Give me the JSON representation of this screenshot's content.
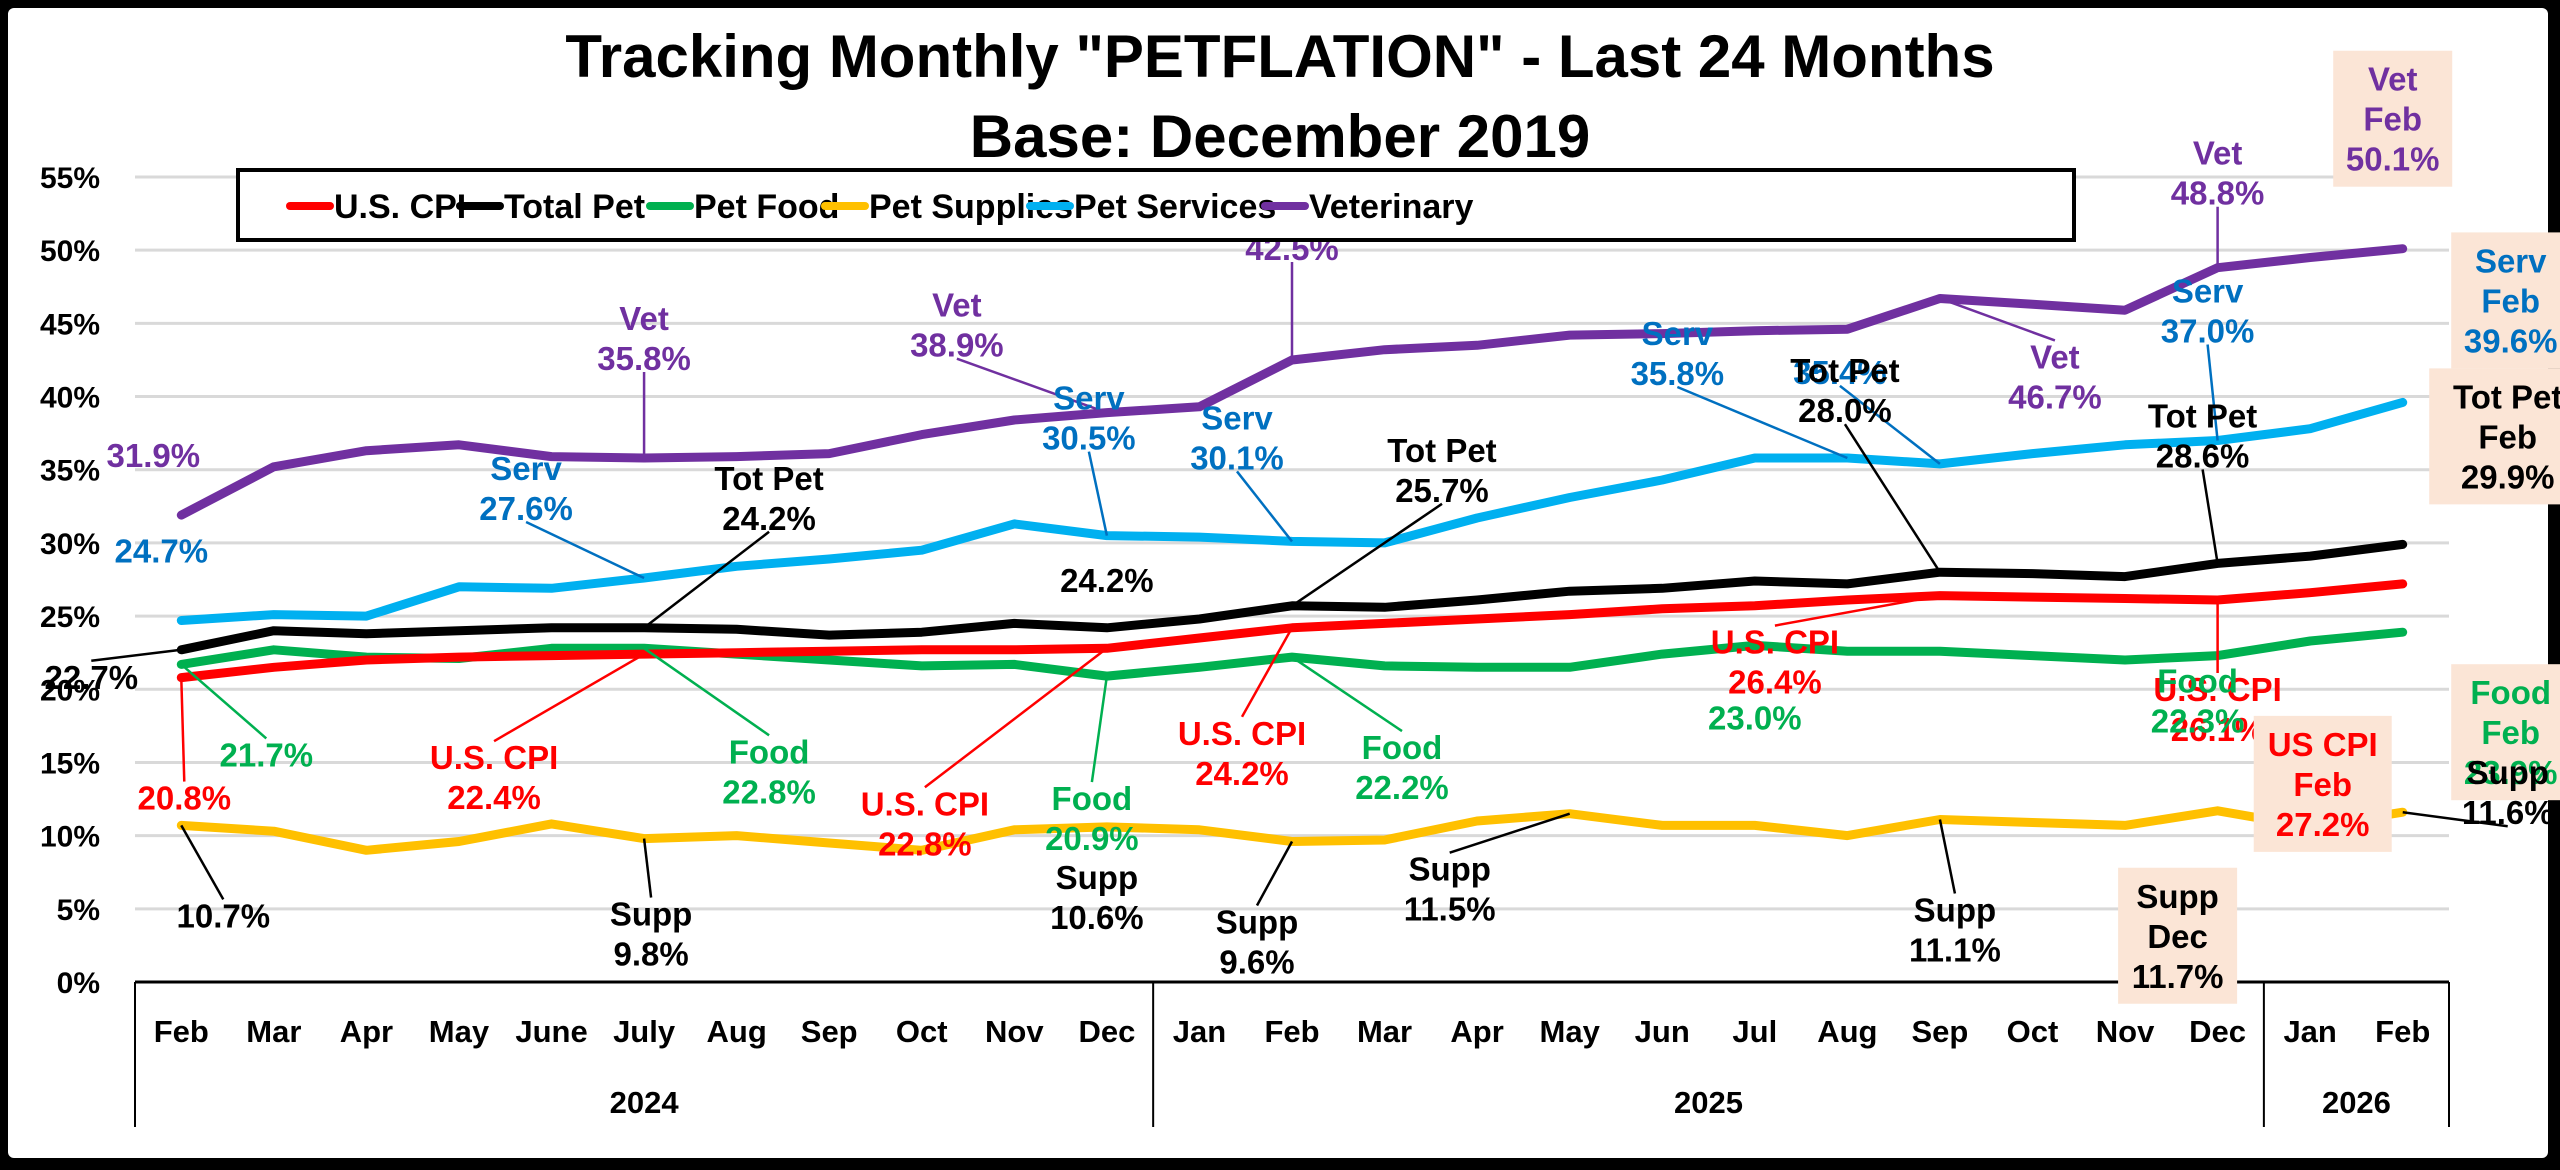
{
  "chart_data": {
    "type": "line",
    "title": "Tracking Monthly \"PETFLATION\" - Last 24 Months",
    "subtitle": "Base: December 2019",
    "xlabel": "",
    "ylabel": "",
    "ylim": [
      0,
      55
    ],
    "yticks": [
      "0%",
      "5%",
      "10%",
      "15%",
      "20%",
      "25%",
      "30%",
      "35%",
      "40%",
      "45%",
      "50%",
      "55%"
    ],
    "grid": true,
    "legend_position": "top-center",
    "categories": [
      "Feb",
      "Mar",
      "Apr",
      "May",
      "June",
      "July",
      "Aug",
      "Sep",
      "Oct",
      "Nov",
      "Dec",
      "Jan",
      "Feb",
      "Mar",
      "Apr",
      "May",
      "Jun",
      "Jul",
      "Aug",
      "Sep",
      "Oct",
      "Nov",
      "Dec",
      "Jan",
      "Feb"
    ],
    "year_groups": [
      {
        "label": "2024",
        "count": 11
      },
      {
        "label": "2025",
        "count": 12
      },
      {
        "label": "2026",
        "count": 2
      }
    ],
    "series": [
      {
        "name": "U.S. CPI",
        "color": "#FF0000",
        "values": [
          20.8,
          21.5,
          22.0,
          22.2,
          22.3,
          22.4,
          22.5,
          22.6,
          22.7,
          22.7,
          22.8,
          23.5,
          24.2,
          24.5,
          24.8,
          25.1,
          25.5,
          25.7,
          26.1,
          26.4,
          26.3,
          26.2,
          26.1,
          26.6,
          27.2
        ]
      },
      {
        "name": "Total Pet",
        "color": "#000000",
        "values": [
          22.7,
          24.0,
          23.8,
          24.0,
          24.2,
          24.2,
          24.1,
          23.7,
          23.9,
          24.5,
          24.2,
          24.8,
          25.7,
          25.6,
          26.1,
          26.7,
          26.9,
          27.4,
          27.2,
          28.0,
          27.9,
          27.7,
          28.6,
          29.1,
          29.9
        ]
      },
      {
        "name": "Pet Food",
        "color": "#00B050",
        "values": [
          21.7,
          22.7,
          22.2,
          22.1,
          22.8,
          22.8,
          22.4,
          22.0,
          21.6,
          21.7,
          20.9,
          21.5,
          22.2,
          21.6,
          21.5,
          21.5,
          22.4,
          23.0,
          22.6,
          22.6,
          22.3,
          22.0,
          22.3,
          23.3,
          23.9
        ]
      },
      {
        "name": "Pet Supplies",
        "color": "#FFC000",
        "values": [
          10.7,
          10.3,
          9.0,
          9.6,
          10.8,
          9.8,
          10.0,
          9.5,
          9.0,
          10.4,
          10.6,
          10.4,
          9.6,
          9.7,
          11.0,
          11.5,
          10.7,
          10.7,
          10.0,
          11.1,
          10.9,
          10.7,
          11.7,
          10.6,
          11.6
        ]
      },
      {
        "name": "Pet Services",
        "color": "#00B0F0",
        "values": [
          24.7,
          25.1,
          25.0,
          27.0,
          26.9,
          27.6,
          28.4,
          28.9,
          29.5,
          31.3,
          30.5,
          30.4,
          30.1,
          30.0,
          31.7,
          33.1,
          34.3,
          35.8,
          35.8,
          35.4,
          36.1,
          36.7,
          37.0,
          37.8,
          39.6
        ]
      },
      {
        "name": "Veterinary",
        "color": "#7030A0",
        "values": [
          31.9,
          35.2,
          36.3,
          36.7,
          35.9,
          35.8,
          35.9,
          36.1,
          37.4,
          38.4,
          38.9,
          39.3,
          42.5,
          43.2,
          43.5,
          44.2,
          44.3,
          44.5,
          44.6,
          46.7,
          46.3,
          45.9,
          48.8,
          49.5,
          50.1
        ]
      }
    ],
    "annotations": [
      {
        "series": 5,
        "index": 0,
        "lines": [
          "31.9%"
        ],
        "color": "#7030A0",
        "box": false
      },
      {
        "series": 5,
        "index": 5,
        "lines": [
          "Vet",
          "35.8%"
        ],
        "color": "#7030A0",
        "box": false
      },
      {
        "series": 5,
        "index": 10,
        "lines": [
          "Vet",
          "38.9%"
        ],
        "color": "#7030A0",
        "box": false
      },
      {
        "series": 5,
        "index": 12,
        "lines": [
          "Vet",
          "42.5%"
        ],
        "color": "#7030A0",
        "box": false
      },
      {
        "series": 5,
        "index": 19,
        "lines": [
          "Vet",
          "46.7%"
        ],
        "color": "#7030A0",
        "box": false
      },
      {
        "series": 5,
        "index": 22,
        "lines": [
          "Vet",
          "48.8%"
        ],
        "color": "#7030A0",
        "box": false
      },
      {
        "series": 5,
        "index": 24,
        "lines": [
          "Vet",
          "Feb",
          "50.1%"
        ],
        "color": "#7030A0",
        "box": true
      },
      {
        "series": 4,
        "index": 0,
        "lines": [
          "24.7%"
        ],
        "color": "#0070C0",
        "box": false
      },
      {
        "series": 4,
        "index": 5,
        "lines": [
          "Serv",
          "27.6%"
        ],
        "color": "#0070C0",
        "box": false
      },
      {
        "series": 4,
        "index": 10,
        "lines": [
          "Serv",
          "30.5%"
        ],
        "color": "#0070C0",
        "box": false
      },
      {
        "series": 4,
        "index": 12,
        "lines": [
          "Serv",
          "30.1%"
        ],
        "color": "#0070C0",
        "box": false
      },
      {
        "series": 4,
        "index": 18,
        "lines": [
          "Serv",
          "35.8%"
        ],
        "color": "#0070C0",
        "box": false
      },
      {
        "series": 4,
        "index": 19,
        "lines": [
          "35.4%"
        ],
        "color": "#0070C0",
        "box": false
      },
      {
        "series": 4,
        "index": 22,
        "lines": [
          "Serv",
          "37.0%"
        ],
        "color": "#0070C0",
        "box": false
      },
      {
        "series": 4,
        "index": 24,
        "lines": [
          "Serv",
          "Feb",
          "39.6%"
        ],
        "color": "#0070C0",
        "box": true
      },
      {
        "series": 1,
        "index": 0,
        "lines": [
          "22.7%"
        ],
        "color": "#000000",
        "box": false
      },
      {
        "series": 1,
        "index": 5,
        "lines": [
          "Tot Pet",
          "24.2%"
        ],
        "color": "#000000",
        "box": false
      },
      {
        "series": 1,
        "index": 10,
        "lines": [
          "24.2%"
        ],
        "color": "#000000",
        "box": false
      },
      {
        "series": 1,
        "index": 12,
        "lines": [
          "Tot Pet",
          "25.7%"
        ],
        "color": "#000000",
        "box": false
      },
      {
        "series": 1,
        "index": 19,
        "lines": [
          "Tot Pet",
          "28.0%"
        ],
        "color": "#000000",
        "box": false
      },
      {
        "series": 1,
        "index": 22,
        "lines": [
          "Tot Pet",
          "28.6%"
        ],
        "color": "#000000",
        "box": false
      },
      {
        "series": 1,
        "index": 24,
        "lines": [
          "Tot Pet",
          "Feb",
          "29.9%"
        ],
        "color": "#000000",
        "box": true
      },
      {
        "series": 0,
        "index": 0,
        "lines": [
          "20.8%"
        ],
        "color": "#FF0000",
        "box": false
      },
      {
        "series": 0,
        "index": 5,
        "lines": [
          "U.S. CPI",
          "22.4%"
        ],
        "color": "#FF0000",
        "box": false
      },
      {
        "series": 0,
        "index": 10,
        "lines": [
          "U.S. CPI",
          "22.8%"
        ],
        "color": "#FF0000",
        "box": false
      },
      {
        "series": 0,
        "index": 12,
        "lines": [
          "U.S. CPI",
          "24.2%"
        ],
        "color": "#FF0000",
        "box": false
      },
      {
        "series": 0,
        "index": 19,
        "lines": [
          "U.S. CPI",
          "26.4%"
        ],
        "color": "#FF0000",
        "box": false
      },
      {
        "series": 0,
        "index": 22,
        "lines": [
          "U.S. CPI",
          "26.1%"
        ],
        "color": "#FF0000",
        "box": false
      },
      {
        "series": 0,
        "index": 24,
        "lines": [
          "US CPI",
          "Feb",
          "27.2%"
        ],
        "color": "#FF0000",
        "box": true
      },
      {
        "series": 2,
        "index": 0,
        "lines": [
          "21.7%"
        ],
        "color": "#00B050",
        "box": false
      },
      {
        "series": 2,
        "index": 5,
        "lines": [
          "Food",
          "22.8%"
        ],
        "color": "#00B050",
        "box": false
      },
      {
        "series": 2,
        "index": 10,
        "lines": [
          "Food",
          "20.9%"
        ],
        "color": "#00B050",
        "box": false
      },
      {
        "series": 2,
        "index": 12,
        "lines": [
          "Food",
          "22.2%"
        ],
        "color": "#00B050",
        "box": false
      },
      {
        "series": 2,
        "index": 17,
        "lines": [
          "23.0%"
        ],
        "color": "#00B050",
        "box": false
      },
      {
        "series": 2,
        "index": 22,
        "lines": [
          "Food",
          "22.3%"
        ],
        "color": "#00B050",
        "box": false
      },
      {
        "series": 2,
        "index": 24,
        "lines": [
          "Food",
          "Feb",
          "23.9%"
        ],
        "color": "#00B050",
        "box": true
      },
      {
        "series": 3,
        "index": 0,
        "lines": [
          "10.7%"
        ],
        "color": "#000000",
        "box": false
      },
      {
        "series": 3,
        "index": 5,
        "lines": [
          "Supp",
          "9.8%"
        ],
        "color": "#000000",
        "box": false
      },
      {
        "series": 3,
        "index": 10,
        "lines": [
          "Supp",
          "10.6%"
        ],
        "color": "#000000",
        "box": false
      },
      {
        "series": 3,
        "index": 12,
        "lines": [
          "Supp",
          "9.6%"
        ],
        "color": "#000000",
        "box": false
      },
      {
        "series": 3,
        "index": 15,
        "lines": [
          "Supp",
          "11.5%"
        ],
        "color": "#000000",
        "box": false
      },
      {
        "series": 3,
        "index": 19,
        "lines": [
          "Supp",
          "11.1%"
        ],
        "color": "#000000",
        "box": false
      },
      {
        "series": 3,
        "index": 22,
        "lines": [
          "Supp",
          "Dec",
          "11.7%"
        ],
        "color": "#000000",
        "box": true
      },
      {
        "series": 3,
        "index": 24,
        "lines": [
          "Supp",
          "11.6%"
        ],
        "color": "#000000",
        "box": false
      }
    ],
    "highlight_box_color": "#FBE5D6",
    "gridline_color": "#D9D9D9"
  }
}
